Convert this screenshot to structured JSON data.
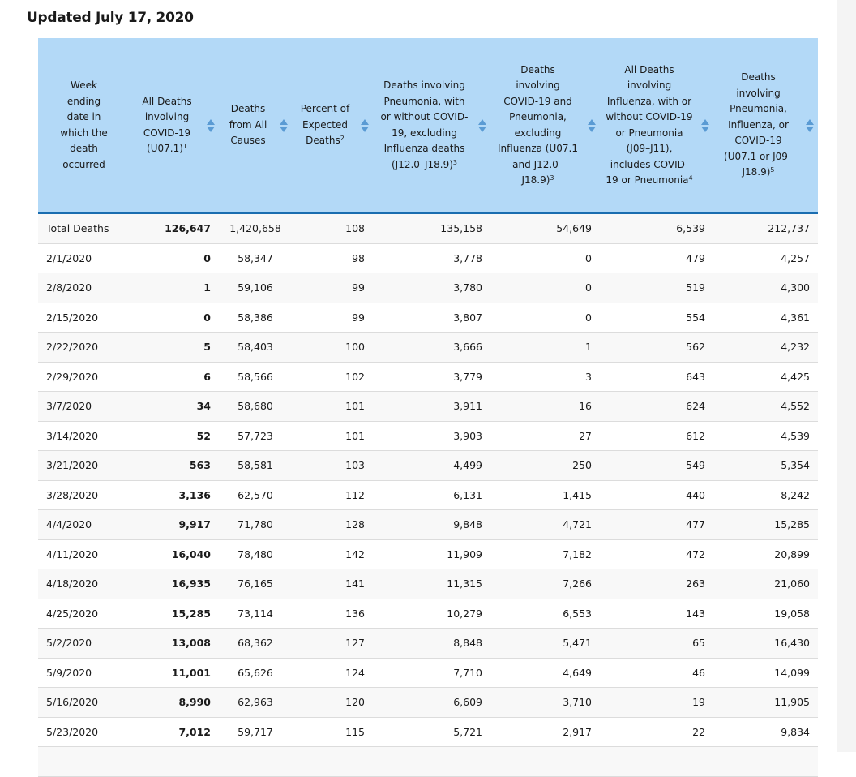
{
  "title": "Updated July 17, 2020",
  "headers": [
    {
      "label": "Week ending date in which the death occurred",
      "sup": ""
    },
    {
      "label": "All Deaths involving COVID-19 (U07.1)",
      "sup": "1"
    },
    {
      "label": "Deaths from All Causes",
      "sup": ""
    },
    {
      "label": "Percent of Expected Deaths",
      "sup": "2"
    },
    {
      "label": "Deaths involving Pneumonia, with or without COVID-19, excluding Influenza deaths (J12.0–J18.9)",
      "sup": "3"
    },
    {
      "label": "Deaths involving COVID-19 and Pneumonia, excluding Influenza (U07.1 and J12.0–J18.9)",
      "sup": "3"
    },
    {
      "label": "All Deaths involving Influenza, with or without COVID-19 or Pneumonia (J09–J11), includes COVID-19 or Pneumonia",
      "sup": "4"
    },
    {
      "label": "Deaths involving Pneumonia, Influenza, or COVID-19 (U07.1 or J09–J18.9)",
      "sup": "5"
    }
  ],
  "rows": [
    [
      "Total Deaths",
      "126,647",
      "1,420,658",
      "108",
      "135,158",
      "54,649",
      "6,539",
      "212,737"
    ],
    [
      "2/1/2020",
      "0",
      "58,347",
      "98",
      "3,778",
      "0",
      "479",
      "4,257"
    ],
    [
      "2/8/2020",
      "1",
      "59,106",
      "99",
      "3,780",
      "0",
      "519",
      "4,300"
    ],
    [
      "2/15/2020",
      "0",
      "58,386",
      "99",
      "3,807",
      "0",
      "554",
      "4,361"
    ],
    [
      "2/22/2020",
      "5",
      "58,403",
      "100",
      "3,666",
      "1",
      "562",
      "4,232"
    ],
    [
      "2/29/2020",
      "6",
      "58,566",
      "102",
      "3,779",
      "3",
      "643",
      "4,425"
    ],
    [
      "3/7/2020",
      "34",
      "58,680",
      "101",
      "3,911",
      "16",
      "624",
      "4,552"
    ],
    [
      "3/14/2020",
      "52",
      "57,723",
      "101",
      "3,903",
      "27",
      "612",
      "4,539"
    ],
    [
      "3/21/2020",
      "563",
      "58,581",
      "103",
      "4,499",
      "250",
      "549",
      "5,354"
    ],
    [
      "3/28/2020",
      "3,136",
      "62,570",
      "112",
      "6,131",
      "1,415",
      "440",
      "8,242"
    ],
    [
      "4/4/2020",
      "9,917",
      "71,780",
      "128",
      "9,848",
      "4,721",
      "477",
      "15,285"
    ],
    [
      "4/11/2020",
      "16,040",
      "78,480",
      "142",
      "11,909",
      "7,182",
      "472",
      "20,899"
    ],
    [
      "4/18/2020",
      "16,935",
      "76,165",
      "141",
      "11,315",
      "7,266",
      "263",
      "21,060"
    ],
    [
      "4/25/2020",
      "15,285",
      "73,114",
      "136",
      "10,279",
      "6,553",
      "143",
      "19,058"
    ],
    [
      "5/2/2020",
      "13,008",
      "68,362",
      "127",
      "8,848",
      "5,471",
      "65",
      "16,430"
    ],
    [
      "5/9/2020",
      "11,001",
      "65,626",
      "124",
      "7,710",
      "4,649",
      "46",
      "14,099"
    ],
    [
      "5/16/2020",
      "8,990",
      "62,963",
      "120",
      "6,609",
      "3,710",
      "19",
      "11,905"
    ],
    [
      "5/23/2020",
      "7,012",
      "59,717",
      "115",
      "5,721",
      "2,917",
      "22",
      "9,834"
    ],
    [
      "",
      "",
      "",
      "",
      "",
      "",
      "",
      ""
    ]
  ],
  "colors": {
    "header_bg": "#b3d9f7",
    "header_border": "#1a6db0",
    "sort_icon": "#5a9bd4"
  }
}
